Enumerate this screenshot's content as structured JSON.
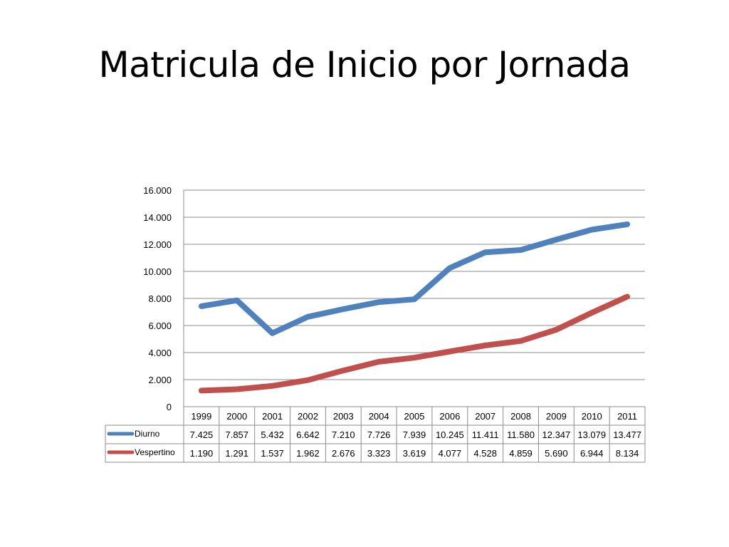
{
  "slide": {
    "title": "Matricula de Inicio por Jornada"
  },
  "chart_data": {
    "type": "line",
    "categories": [
      "1999",
      "2000",
      "2001",
      "2002",
      "2003",
      "2004",
      "2005",
      "2006",
      "2007",
      "2008",
      "2009",
      "2010",
      "2011"
    ],
    "series": [
      {
        "name": "Diurno",
        "color": "#4F81BD",
        "values": [
          7425,
          7857,
          5432,
          6642,
          7210,
          7726,
          7939,
          10245,
          11411,
          11580,
          12347,
          13079,
          13477
        ],
        "labels": [
          "7.425",
          "7.857",
          "5.432",
          "6.642",
          "7.210",
          "7.726",
          "7.939",
          "10.245",
          "11.411",
          "11.580",
          "12.347",
          "13.079",
          "13.477"
        ]
      },
      {
        "name": "Vespertino",
        "color": "#C0504D",
        "values": [
          1190,
          1291,
          1537,
          1962,
          2676,
          3323,
          3619,
          4077,
          4528,
          4859,
          5690,
          6944,
          8134
        ],
        "labels": [
          "1.190",
          "1.291",
          "1.537",
          "1.962",
          "2.676",
          "3.323",
          "3.619",
          "4.077",
          "4.528",
          "4.859",
          "5.690",
          "6.944",
          "8.134"
        ]
      }
    ],
    "ylim": [
      0,
      16000
    ],
    "y_ticks": [
      0,
      2000,
      4000,
      6000,
      8000,
      10000,
      12000,
      14000,
      16000
    ],
    "y_tick_labels": [
      "0",
      "2.000",
      "4.000",
      "6.000",
      "8.000",
      "10.000",
      "12.000",
      "14.000",
      "16.000"
    ],
    "grid": true,
    "legend": "data-table-left",
    "data_table": true
  }
}
